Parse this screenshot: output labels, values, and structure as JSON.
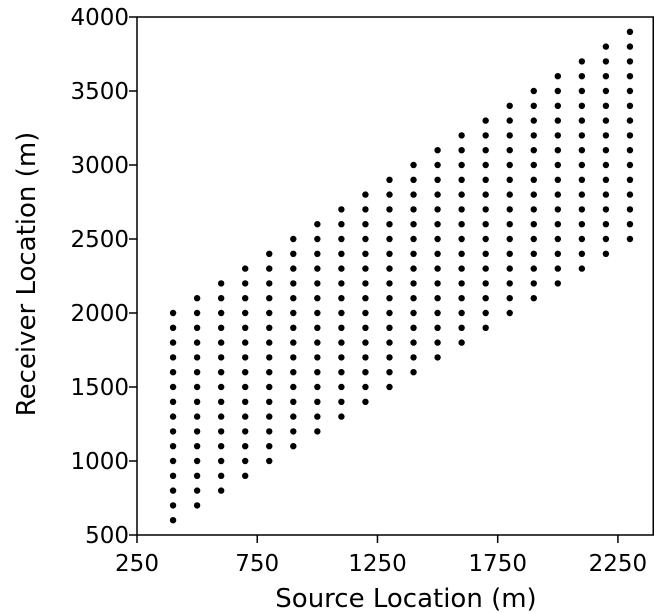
{
  "chart_data": {
    "type": "scatter",
    "title": "",
    "xlabel": "Source Location (m)",
    "ylabel": "Receiver Location (m)",
    "xlim": [
      250,
      2400
    ],
    "ylim": [
      500,
      4000
    ],
    "xticks": [
      250,
      750,
      1250,
      1750,
      2250
    ],
    "yticks": [
      500,
      1000,
      1500,
      2000,
      2500,
      3000,
      3500,
      4000
    ],
    "grid": false,
    "marker_color": "#000000",
    "source_locations": [
      400,
      500,
      600,
      700,
      800,
      900,
      1000,
      1100,
      1200,
      1300,
      1400,
      1500,
      1600,
      1700,
      1800,
      1900,
      2000,
      2100,
      2200,
      2300
    ],
    "receiver_min": [
      600,
      700,
      800,
      900,
      1000,
      1100,
      1200,
      1300,
      1400,
      1500,
      1600,
      1700,
      1800,
      1900,
      2000,
      2100,
      2200,
      2300,
      2400,
      2500
    ],
    "receiver_max": [
      2000,
      2100,
      2200,
      2300,
      2400,
      2500,
      2600,
      2700,
      2800,
      2900,
      3000,
      3100,
      3200,
      3300,
      3400,
      3500,
      3600,
      3700,
      3800,
      3900
    ],
    "receiver_spacing": 100
  }
}
